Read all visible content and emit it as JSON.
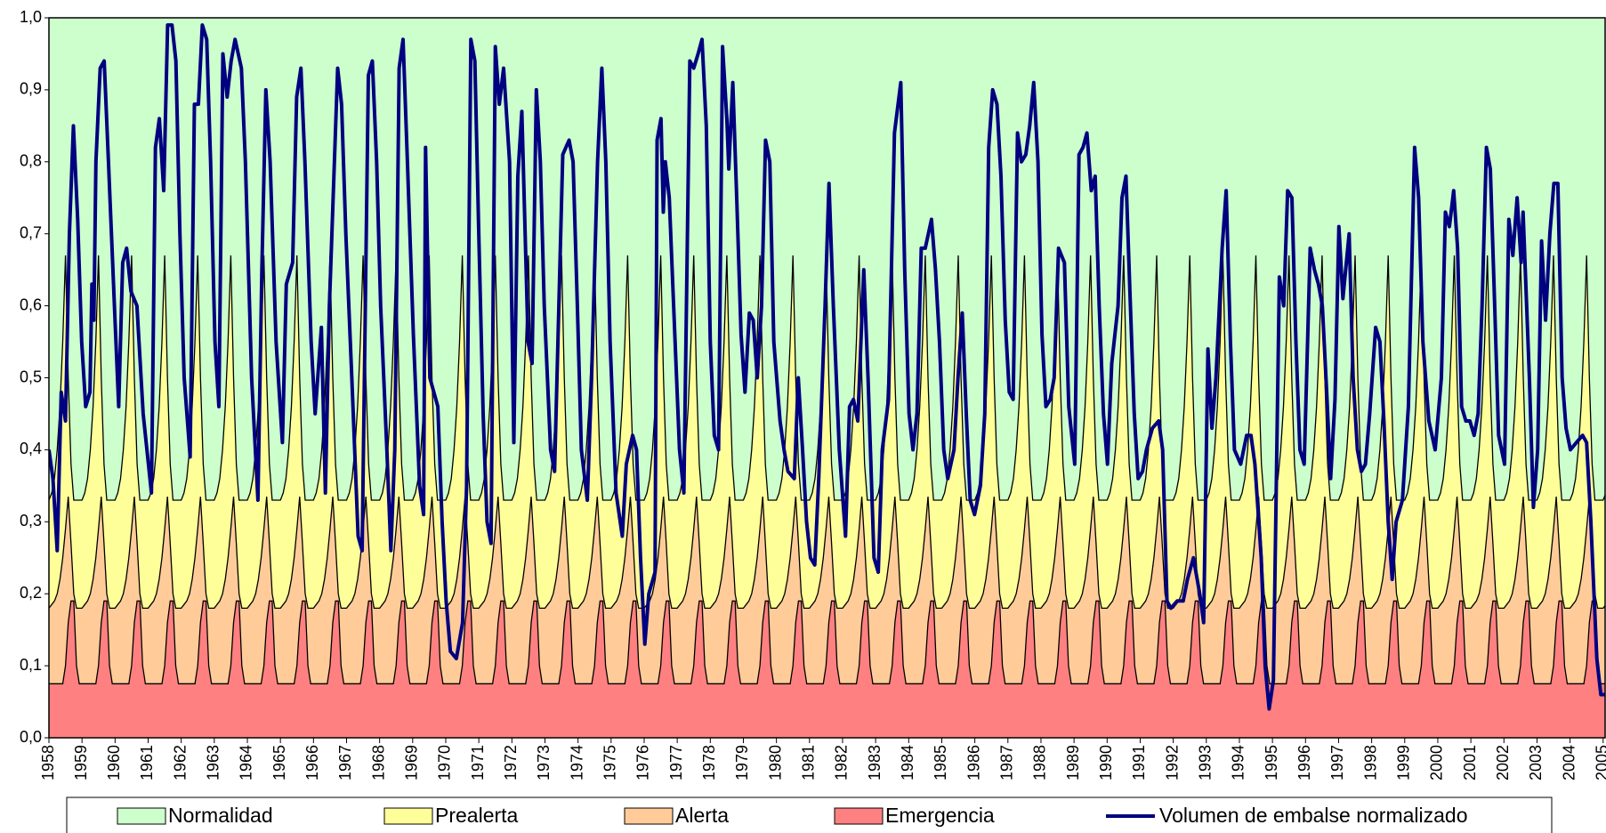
{
  "chart_data": {
    "type": "line",
    "ylim": [
      0,
      1
    ],
    "yticks": [
      {
        "value": 0,
        "label": "0,0"
      },
      {
        "value": 0.1,
        "label": "0,1"
      },
      {
        "value": 0.2,
        "label": "0,2"
      },
      {
        "value": 0.3,
        "label": "0,3"
      },
      {
        "value": 0.4,
        "label": "0,4"
      },
      {
        "value": 0.5,
        "label": "0,5"
      },
      {
        "value": 0.6,
        "label": "0,6"
      },
      {
        "value": 0.7,
        "label": "0,7"
      },
      {
        "value": 0.8,
        "label": "0,8"
      },
      {
        "value": 0.9,
        "label": "0,9"
      },
      {
        "value": 1,
        "label": "1,0"
      }
    ],
    "xlim": [
      1958,
      2005.06
    ],
    "xticks": [
      1958,
      1959,
      1960,
      1961,
      1962,
      1963,
      1964,
      1965,
      1966,
      1967,
      1968,
      1969,
      1970,
      1971,
      1972,
      1973,
      1974,
      1975,
      1976,
      1977,
      1978,
      1979,
      1980,
      1981,
      1982,
      1983,
      1984,
      1985,
      1986,
      1987,
      1988,
      1989,
      1990,
      1991,
      1992,
      1993,
      1994,
      1995,
      1996,
      1997,
      1998,
      1999,
      2000,
      2001,
      2002,
      2003,
      2004,
      2005
    ],
    "bands": [
      {
        "name": "Normalidad",
        "color": "#ccffcc"
      },
      {
        "name": "Prealerta",
        "color": "#ffff99",
        "seasonal": [
          0.33,
          0.34,
          0.36,
          0.4,
          0.46,
          0.55,
          0.67,
          0.5,
          0.38,
          0.33,
          0.33,
          0.33
        ]
      },
      {
        "name": "Alerta",
        "color": "#ffcc99",
        "seasonal": [
          0.18,
          0.185,
          0.19,
          0.2,
          0.22,
          0.25,
          0.29,
          0.335,
          0.27,
          0.2,
          0.18,
          0.18
        ]
      },
      {
        "name": "Emergencia",
        "color": "#ff8080",
        "seasonal": [
          0.075,
          0.075,
          0.075,
          0.075,
          0.075,
          0.075,
          0.1,
          0.16,
          0.19,
          0.19,
          0.1,
          0.075
        ]
      }
    ],
    "x": [
      1958.0,
      1958.12,
      1958.25,
      1958.37,
      1958.5,
      1958.62,
      1958.74,
      1958.87,
      1958.99,
      1959.11,
      1959.24,
      1959.3,
      1959.36,
      1959.42,
      1959.55,
      1959.67,
      1959.8,
      1959.98,
      1960.11,
      1960.23,
      1960.35,
      1960.48,
      1960.66,
      1960.85,
      1961.1,
      1961.22,
      1961.34,
      1961.47,
      1961.59,
      1961.72,
      1961.84,
      1961.96,
      1962.09,
      1962.27,
      1962.4,
      1962.52,
      1962.64,
      1962.77,
      1962.89,
      1963.02,
      1963.14,
      1963.26,
      1963.39,
      1963.51,
      1963.63,
      1963.82,
      1963.94,
      1964.13,
      1964.32,
      1964.44,
      1964.56,
      1964.69,
      1964.87,
      1965.06,
      1965.18,
      1965.37,
      1965.49,
      1965.62,
      1965.74,
      1965.93,
      1966.05,
      1966.24,
      1966.36,
      1966.48,
      1966.73,
      1966.85,
      1966.98,
      1967.16,
      1967.35,
      1967.47,
      1967.66,
      1967.78,
      1967.91,
      1968.03,
      1968.22,
      1968.34,
      1968.46,
      1968.59,
      1968.71,
      1968.84,
      1969.02,
      1969.21,
      1969.33,
      1969.39,
      1969.52,
      1969.76,
      1969.89,
      1970.01,
      1970.14,
      1970.32,
      1970.51,
      1970.63,
      1970.76,
      1970.88,
      1971.0,
      1971.13,
      1971.25,
      1971.37,
      1971.5,
      1971.62,
      1971.75,
      1971.93,
      1972.06,
      1972.18,
      1972.3,
      1972.49,
      1972.61,
      1972.74,
      1972.86,
      1972.98,
      1973.17,
      1973.29,
      1973.42,
      1973.54,
      1973.73,
      1973.85,
      1973.98,
      1974.1,
      1974.28,
      1974.41,
      1974.59,
      1974.72,
      1974.84,
      1974.97,
      1975.15,
      1975.34,
      1975.46,
      1975.65,
      1975.77,
      1975.89,
      1976.02,
      1976.14,
      1976.33,
      1976.39,
      1976.51,
      1976.58,
      1976.64,
      1976.76,
      1976.89,
      1977.07,
      1977.2,
      1977.38,
      1977.5,
      1977.63,
      1977.75,
      1977.88,
      1978.0,
      1978.12,
      1978.25,
      1978.37,
      1978.5,
      1978.56,
      1978.68,
      1978.8,
      1978.93,
      1979.05,
      1979.18,
      1979.3,
      1979.42,
      1979.55,
      1979.67,
      1979.8,
      1979.92,
      1980.11,
      1980.23,
      1980.35,
      1980.54,
      1980.66,
      1980.79,
      1980.91,
      1981.03,
      1981.16,
      1981.28,
      1981.47,
      1981.59,
      1981.72,
      1981.9,
      1982.09,
      1982.21,
      1982.33,
      1982.46,
      1982.64,
      1982.77,
      1982.95,
      1983.08,
      1983.2,
      1983.39,
      1983.57,
      1983.76,
      1983.88,
      1984.01,
      1984.13,
      1984.25,
      1984.38,
      1984.5,
      1984.69,
      1984.81,
      1984.93,
      1985.06,
      1985.18,
      1985.37,
      1985.49,
      1985.62,
      1985.74,
      1985.86,
      1985.99,
      1986.17,
      1986.3,
      1986.42,
      1986.54,
      1986.67,
      1986.79,
      1986.92,
      1987.04,
      1987.16,
      1987.29,
      1987.41,
      1987.54,
      1987.66,
      1987.78,
      1987.91,
      1988.03,
      1988.15,
      1988.28,
      1988.4,
      1988.53,
      1988.71,
      1988.84,
      1989.02,
      1989.15,
      1989.27,
      1989.39,
      1989.52,
      1989.64,
      1989.76,
      1989.89,
      1990.01,
      1990.14,
      1990.33,
      1990.45,
      1990.57,
      1990.69,
      1990.82,
      1990.94,
      1991.07,
      1991.19,
      1991.37,
      1991.56,
      1991.68,
      1991.81,
      1991.93,
      1992.12,
      1992.3,
      1992.43,
      1992.61,
      1992.8,
      1992.92,
      1993.05,
      1993.17,
      1993.29,
      1993.48,
      1993.6,
      1993.73,
      1993.85,
      1994.04,
      1994.22,
      1994.35,
      1994.47,
      1994.66,
      1994.78,
      1994.9,
      1995.03,
      1995.21,
      1995.34,
      1995.46,
      1995.59,
      1995.71,
      1995.83,
      1995.96,
      1996.14,
      1996.27,
      1996.39,
      1996.51,
      1996.64,
      1996.76,
      1996.89,
      1997.01,
      1997.13,
      1997.32,
      1997.44,
      1997.57,
      1997.69,
      1997.81,
      1997.94,
      1998.12,
      1998.25,
      1998.37,
      1998.5,
      1998.62,
      1998.74,
      1998.93,
      1999.11,
      1999.3,
      1999.42,
      1999.55,
      1999.73,
      1999.92,
      2000.11,
      2000.23,
      2000.35,
      2000.48,
      2000.6,
      2000.72,
      2000.85,
      2000.97,
      2001.1,
      2001.22,
      2001.34,
      2001.47,
      2001.59,
      2001.72,
      2001.84,
      2002.02,
      2002.15,
      2002.27,
      2002.4,
      2002.52,
      2002.58,
      2002.77,
      2002.89,
      2003.02,
      2003.14,
      2003.26,
      2003.39,
      2003.51,
      2003.63,
      2003.76,
      2003.88,
      2004.01,
      2004.19,
      2004.38,
      2004.5,
      2004.63,
      2004.81,
      2004.93,
      2005.06
    ],
    "series": [
      {
        "name": "Volumen de embalse normalizado",
        "color": "#000080",
        "values": [
          0.4,
          0.36,
          0.26,
          0.48,
          0.44,
          0.7,
          0.85,
          0.72,
          0.55,
          0.46,
          0.48,
          0.63,
          0.58,
          0.8,
          0.93,
          0.94,
          0.8,
          0.6,
          0.46,
          0.66,
          0.68,
          0.62,
          0.6,
          0.45,
          0.34,
          0.82,
          0.86,
          0.76,
          0.99,
          0.99,
          0.94,
          0.7,
          0.5,
          0.39,
          0.88,
          0.88,
          0.99,
          0.97,
          0.8,
          0.55,
          0.46,
          0.95,
          0.89,
          0.94,
          0.97,
          0.93,
          0.8,
          0.5,
          0.33,
          0.65,
          0.9,
          0.8,
          0.55,
          0.41,
          0.63,
          0.66,
          0.89,
          0.93,
          0.8,
          0.55,
          0.45,
          0.57,
          0.34,
          0.6,
          0.93,
          0.88,
          0.7,
          0.5,
          0.28,
          0.26,
          0.92,
          0.94,
          0.8,
          0.6,
          0.4,
          0.26,
          0.4,
          0.93,
          0.97,
          0.8,
          0.56,
          0.35,
          0.31,
          0.82,
          0.5,
          0.46,
          0.3,
          0.19,
          0.12,
          0.11,
          0.16,
          0.35,
          0.97,
          0.94,
          0.7,
          0.45,
          0.3,
          0.27,
          0.96,
          0.88,
          0.93,
          0.8,
          0.41,
          0.78,
          0.87,
          0.55,
          0.52,
          0.9,
          0.8,
          0.6,
          0.4,
          0.37,
          0.6,
          0.81,
          0.83,
          0.8,
          0.6,
          0.4,
          0.33,
          0.5,
          0.8,
          0.93,
          0.8,
          0.55,
          0.34,
          0.28,
          0.38,
          0.42,
          0.4,
          0.25,
          0.13,
          0.2,
          0.23,
          0.83,
          0.86,
          0.73,
          0.8,
          0.75,
          0.6,
          0.4,
          0.34,
          0.94,
          0.93,
          0.95,
          0.97,
          0.85,
          0.55,
          0.42,
          0.4,
          0.96,
          0.86,
          0.79,
          0.91,
          0.75,
          0.56,
          0.48,
          0.59,
          0.58,
          0.5,
          0.6,
          0.83,
          0.8,
          0.55,
          0.44,
          0.4,
          0.37,
          0.36,
          0.5,
          0.4,
          0.3,
          0.25,
          0.24,
          0.36,
          0.6,
          0.77,
          0.6,
          0.4,
          0.28,
          0.46,
          0.47,
          0.44,
          0.65,
          0.5,
          0.25,
          0.23,
          0.4,
          0.47,
          0.84,
          0.91,
          0.65,
          0.45,
          0.4,
          0.45,
          0.68,
          0.68,
          0.72,
          0.65,
          0.55,
          0.4,
          0.36,
          0.4,
          0.5,
          0.59,
          0.45,
          0.33,
          0.31,
          0.35,
          0.45,
          0.82,
          0.9,
          0.88,
          0.78,
          0.58,
          0.48,
          0.47,
          0.84,
          0.8,
          0.81,
          0.85,
          0.91,
          0.8,
          0.56,
          0.46,
          0.47,
          0.5,
          0.68,
          0.66,
          0.46,
          0.38,
          0.81,
          0.82,
          0.84,
          0.76,
          0.78,
          0.6,
          0.45,
          0.38,
          0.52,
          0.6,
          0.75,
          0.78,
          0.62,
          0.45,
          0.36,
          0.37,
          0.4,
          0.43,
          0.44,
          0.4,
          0.19,
          0.18,
          0.19,
          0.19,
          0.22,
          0.25,
          0.2,
          0.16,
          0.54,
          0.43,
          0.5,
          0.68,
          0.76,
          0.55,
          0.4,
          0.38,
          0.42,
          0.42,
          0.38,
          0.25,
          0.1,
          0.04,
          0.08,
          0.64,
          0.6,
          0.76,
          0.75,
          0.55,
          0.4,
          0.38,
          0.68,
          0.65,
          0.63,
          0.6,
          0.48,
          0.36,
          0.47,
          0.71,
          0.61,
          0.7,
          0.5,
          0.4,
          0.37,
          0.38,
          0.45,
          0.57,
          0.55,
          0.44,
          0.3,
          0.22,
          0.3,
          0.33,
          0.46,
          0.82,
          0.75,
          0.55,
          0.44,
          0.4,
          0.5,
          0.73,
          0.71,
          0.76,
          0.68,
          0.46,
          0.44,
          0.44,
          0.42,
          0.45,
          0.6,
          0.82,
          0.79,
          0.6,
          0.42,
          0.38,
          0.72,
          0.67,
          0.75,
          0.66,
          0.73,
          0.5,
          0.32,
          0.4,
          0.69,
          0.58,
          0.7,
          0.77,
          0.77,
          0.5,
          0.43,
          0.4,
          0.41,
          0.42,
          0.41,
          0.3,
          0.11,
          0.06,
          0.06
        ]
      }
    ]
  }
}
